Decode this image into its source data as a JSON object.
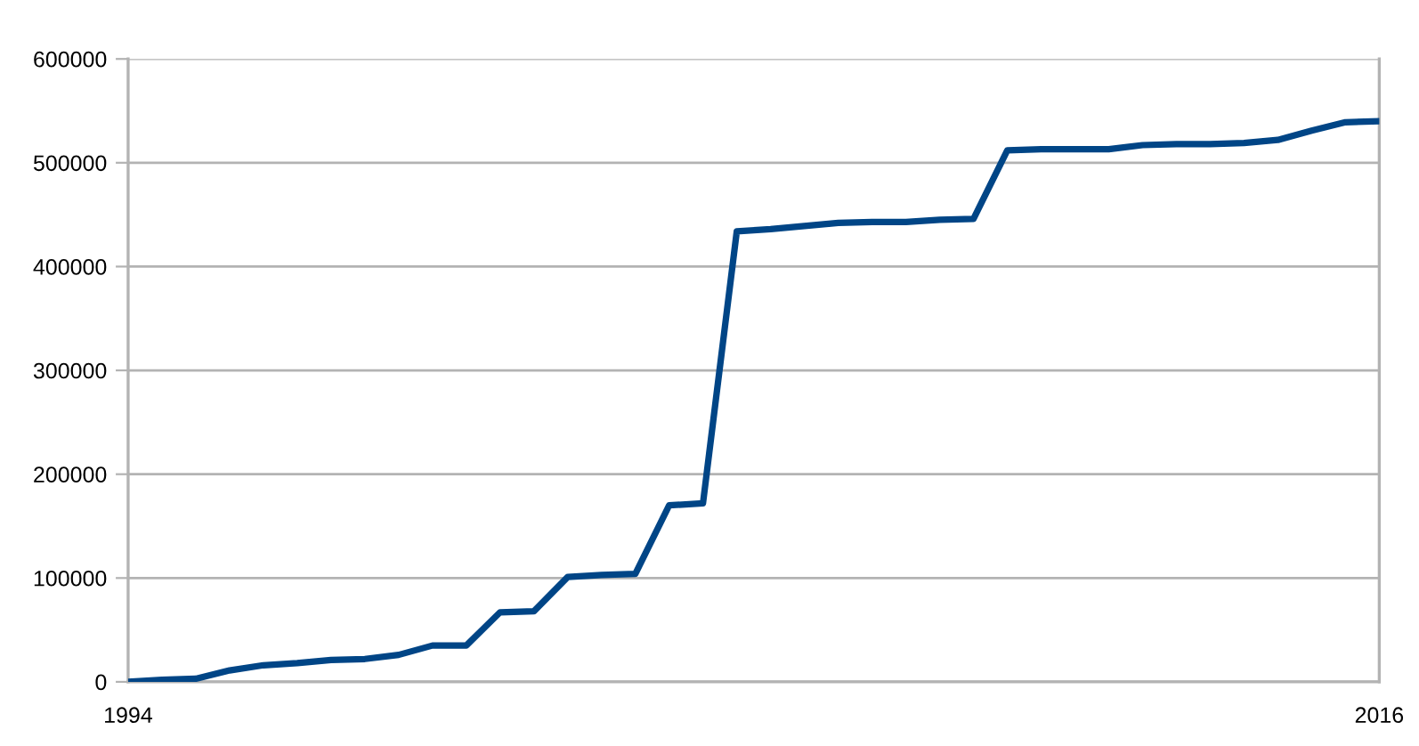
{
  "chart_data": {
    "type": "line",
    "categories": [
      "1994",
      null,
      null,
      null,
      null,
      null,
      null,
      null,
      null,
      null,
      null,
      null,
      null,
      null,
      null,
      null,
      null,
      null,
      null,
      null,
      null,
      null,
      null,
      null,
      null,
      null,
      null,
      null,
      null,
      null,
      null,
      null,
      null,
      null,
      null,
      null,
      null,
      "2016"
    ],
    "series": [
      {
        "color": "#004586",
        "values": [
          0,
          2000,
          3000,
          11000,
          16000,
          18000,
          21000,
          22000,
          26000,
          35000,
          35000,
          67000,
          68000,
          101000,
          103000,
          104000,
          170000,
          172000,
          434000,
          436000,
          439000,
          442000,
          443000,
          443000,
          445000,
          446000,
          512000,
          513000,
          513000,
          513000,
          517000,
          518000,
          518000,
          519000,
          522000,
          531000,
          539000,
          540000
        ]
      }
    ],
    "ylim": [
      0,
      600000
    ],
    "yticks": [
      0,
      100000,
      200000,
      300000,
      400000,
      500000,
      600000
    ],
    "grid": "y",
    "marker": "none",
    "line_style": "solid",
    "legend": false
  }
}
